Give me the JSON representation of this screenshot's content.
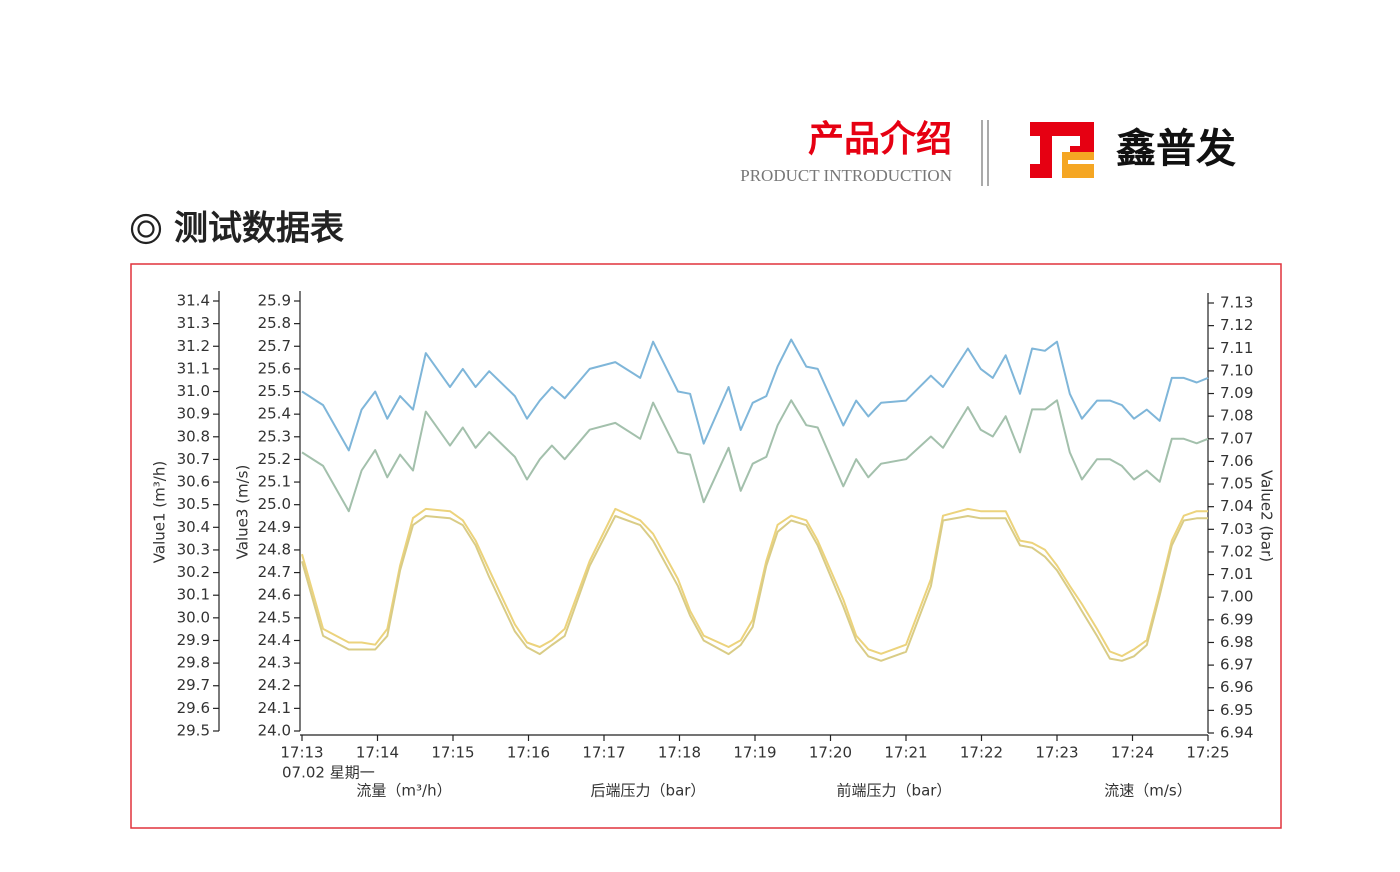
{
  "header": {
    "title": "产品介绍",
    "subtitle": "PRODUCT INTRODUCTION",
    "brand": "鑫普发"
  },
  "section_title": "测试数据表",
  "chart_data": {
    "type": "line",
    "x": [
      1033,
      1033.28,
      1033.62,
      1033.79,
      1033.97,
      1034.13,
      1034.3,
      1034.47,
      1034.64,
      1034.96,
      1035.13,
      1035.3,
      1035.48,
      1035.82,
      1035.98,
      1036.15,
      1036.31,
      1036.48,
      1036.81,
      1037.15,
      1037.48,
      1037.65,
      1037.98,
      1038.14,
      1038.32,
      1038.65,
      1038.81,
      1038.97,
      1039.15,
      1039.3,
      1039.48,
      1039.68,
      1039.83,
      1040.17,
      1040.34,
      1040.5,
      1040.67,
      1041,
      1041.33,
      1041.49,
      1041.82,
      1041.99,
      1042.15,
      1042.32,
      1042.51,
      1042.67,
      1042.84,
      1043,
      1043.17,
      1043.33,
      1043.53,
      1043.7,
      1043.86,
      1044.02,
      1044.19,
      1044.36,
      1044.52,
      1044.68,
      1044.85,
      1045
    ],
    "xlim": [
      1033,
      1045
    ],
    "xticks": [
      {
        "value": 1033,
        "label": "17:13"
      },
      {
        "value": 1034,
        "label": "17:14"
      },
      {
        "value": 1035,
        "label": "17:15"
      },
      {
        "value": 1036,
        "label": "17:16"
      },
      {
        "value": 1037,
        "label": "17:17"
      },
      {
        "value": 1038,
        "label": "17:18"
      },
      {
        "value": 1039,
        "label": "17:19"
      },
      {
        "value": 1040,
        "label": "17:20"
      },
      {
        "value": 1041,
        "label": "17:21"
      },
      {
        "value": 1042,
        "label": "17:22"
      },
      {
        "value": 1043,
        "label": "17:23"
      },
      {
        "value": 1044,
        "label": "17:24"
      },
      {
        "value": 1045,
        "label": "17:25"
      }
    ],
    "date_label": "07.02 星期一",
    "y_label": "Value1 (m³/h)",
    "ylim": [
      29.5,
      31.4
    ],
    "yticks": [
      29.5,
      29.6,
      29.7,
      29.8,
      29.9,
      {
        "value": 30,
        "label": "30.0"
      },
      30.1,
      30.2,
      30.3,
      30.4,
      30.5,
      30.6,
      30.7,
      30.8,
      30.9,
      {
        "value": 31,
        "label": "31.0"
      },
      31.1,
      31.2,
      31.3,
      31.4
    ],
    "y3_label": "Value3 (m/s)",
    "y3lim": [
      24.0,
      25.9
    ],
    "y3ticks": [
      {
        "value": 24,
        "label": "24.0"
      },
      24.1,
      24.2,
      24.3,
      24.4,
      24.5,
      24.6,
      24.7,
      24.8,
      24.9,
      {
        "value": 25,
        "label": "25.0"
      },
      25.1,
      25.2,
      25.3,
      25.4,
      25.5,
      25.6,
      25.7,
      25.8,
      25.9
    ],
    "y2_label": "Value2 (bar)",
    "y2lim": [
      6.94,
      7.13
    ],
    "y2ticks": [
      6.94,
      6.95,
      6.96,
      6.97,
      6.98,
      6.99,
      {
        "value": 7,
        "label": "7.00"
      },
      7.01,
      7.02,
      7.03,
      7.04,
      7.05,
      7.06,
      7.07,
      7.08,
      7.09,
      {
        "value": 7.1,
        "label": "7.10"
      },
      7.11,
      7.12,
      7.13
    ],
    "series": [
      {
        "name": "流量（m³/h）",
        "color": "#7fb6d9",
        "axis": "y",
        "values": [
          31.0,
          30.94,
          30.74,
          30.92,
          31.0,
          30.88,
          30.98,
          30.92,
          31.17,
          31.02,
          31.1,
          31.02,
          31.09,
          30.98,
          30.88,
          30.96,
          31.02,
          30.97,
          31.1,
          31.13,
          31.06,
          31.22,
          31.0,
          30.99,
          30.77,
          31.02,
          30.83,
          30.95,
          30.98,
          31.11,
          31.23,
          31.11,
          31.1,
          30.85,
          30.96,
          30.89,
          30.95,
          30.96,
          31.07,
          31.02,
          31.19,
          31.1,
          31.06,
          31.16,
          30.99,
          31.19,
          31.18,
          31.22,
          30.99,
          30.88,
          30.96,
          30.96,
          30.94,
          30.88,
          30.92,
          30.87,
          31.06,
          31.06,
          31.04,
          31.06
        ]
      },
      {
        "name": "后端压力（bar）",
        "color": "#a3c0ac",
        "axis": "y2",
        "values": [
          7.064,
          7.058,
          7.038,
          7.056,
          7.065,
          7.053,
          7.063,
          7.056,
          7.082,
          7.067,
          7.075,
          7.066,
          7.073,
          7.062,
          7.052,
          7.061,
          7.067,
          7.061,
          7.074,
          7.077,
          7.07,
          7.086,
          7.064,
          7.063,
          7.042,
          7.066,
          7.047,
          7.059,
          7.062,
          7.076,
          7.087,
          7.076,
          7.075,
          7.049,
          7.061,
          7.053,
          7.059,
          7.061,
          7.071,
          7.066,
          7.084,
          7.074,
          7.071,
          7.08,
          7.064,
          7.083,
          7.083,
          7.087,
          7.064,
          7.052,
          7.061,
          7.061,
          7.058,
          7.052,
          7.056,
          7.051,
          7.07,
          7.07,
          7.068,
          7.07
        ]
      },
      {
        "name": "前端压力（bar）",
        "color": "#ecd37c",
        "axis": "y2",
        "values": [
          7.019,
          6.986,
          6.98,
          6.98,
          6.979,
          6.986,
          7.014,
          7.035,
          7.039,
          7.038,
          7.034,
          7.025,
          7.012,
          6.988,
          6.98,
          6.978,
          6.981,
          6.986,
          7.016,
          7.039,
          7.034,
          7.028,
          7.008,
          6.994,
          6.983,
          6.978,
          6.981,
          6.99,
          7.016,
          7.032,
          7.036,
          7.034,
          7.025,
          6.999,
          6.983,
          6.977,
          6.975,
          6.979,
          7.008,
          7.036,
          7.039,
          7.038,
          7.038,
          7.038,
          7.025,
          7.024,
          7.021,
          7.014,
          7.005,
          6.997,
          6.986,
          6.976,
          6.974,
          6.977,
          6.981,
          7.003,
          7.025,
          7.036,
          7.038,
          7.038
        ]
      },
      {
        "name": "流速（m/s）",
        "color": "#d9cc86",
        "axis": "y3",
        "values": [
          24.75,
          24.42,
          24.36,
          24.36,
          24.36,
          24.42,
          24.71,
          24.91,
          24.95,
          24.94,
          24.91,
          24.82,
          24.68,
          24.44,
          24.37,
          24.34,
          24.38,
          24.42,
          24.73,
          24.95,
          24.91,
          24.84,
          24.64,
          24.51,
          24.4,
          24.34,
          24.38,
          24.46,
          24.73,
          24.88,
          24.93,
          24.91,
          24.82,
          24.55,
          24.4,
          24.33,
          24.31,
          24.35,
          24.64,
          24.93,
          24.95,
          24.94,
          24.94,
          24.94,
          24.82,
          24.81,
          24.77,
          24.71,
          24.62,
          24.53,
          24.42,
          24.32,
          24.31,
          24.33,
          24.38,
          24.6,
          24.82,
          24.93,
          24.94,
          24.94
        ]
      }
    ]
  }
}
